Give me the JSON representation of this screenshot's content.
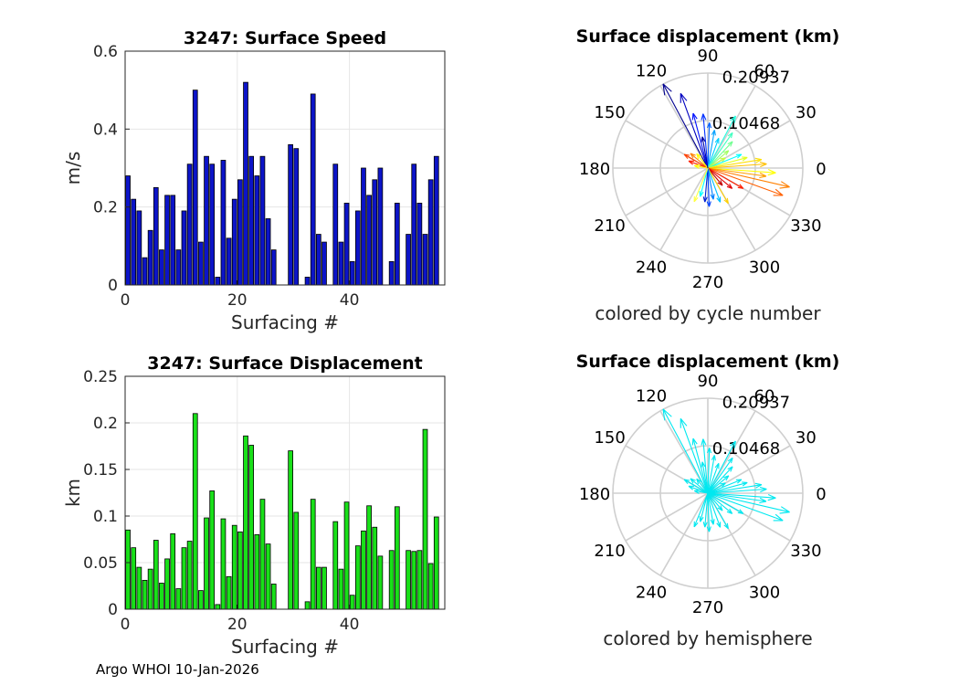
{
  "footer": "Argo WHOI 10-Jan-2026",
  "chart_data": [
    {
      "type": "bar",
      "title": "3247: Surface Speed",
      "xlabel": "Surfacing #",
      "ylabel": "m/s",
      "xlim": [
        0,
        57
      ],
      "ylim": [
        0,
        0.6
      ],
      "xticks": [
        0,
        20,
        40
      ],
      "yticks": [
        0,
        0.2,
        0.4,
        0.6
      ],
      "ytick_labels": [
        "0",
        "0.2",
        "0.4",
        "0.6"
      ],
      "grid": true,
      "bar_color": "#0c14c8",
      "x": [
        0,
        1,
        2,
        3,
        4,
        5,
        6,
        7,
        8,
        9,
        10,
        11,
        12,
        13,
        14,
        15,
        16,
        17,
        18,
        19,
        20,
        21,
        22,
        23,
        24,
        25,
        26,
        29,
        30,
        32,
        33,
        34,
        35,
        37,
        38,
        39,
        40,
        41,
        42,
        43,
        44,
        45,
        47,
        48,
        50,
        51,
        52,
        53,
        54,
        55
      ],
      "values": [
        0.28,
        0.22,
        0.19,
        0.07,
        0.14,
        0.25,
        0.09,
        0.23,
        0.23,
        0.09,
        0.19,
        0.31,
        0.5,
        0.11,
        0.33,
        0.31,
        0.02,
        0.32,
        0.12,
        0.22,
        0.27,
        0.52,
        0.33,
        0.28,
        0.33,
        0.17,
        0.09,
        0.36,
        0.35,
        0.02,
        0.49,
        0.13,
        0.11,
        0.31,
        0.11,
        0.21,
        0.06,
        0.19,
        0.3,
        0.23,
        0.27,
        0.3,
        0.06,
        0.21,
        0.13,
        0.31,
        0.21,
        0.13,
        0.27,
        0.33
      ]
    },
    {
      "type": "bar",
      "title": "3247: Surface Displacement",
      "xlabel": "Surfacing #",
      "ylabel": "km",
      "xlim": [
        0,
        57
      ],
      "ylim": [
        0,
        0.25
      ],
      "xticks": [
        0,
        20,
        40
      ],
      "yticks": [
        0,
        0.05,
        0.1,
        0.15,
        0.2,
        0.25
      ],
      "ytick_labels": [
        "0",
        "0.05",
        "0.1",
        "0.15",
        "0.2",
        "0.25"
      ],
      "grid": true,
      "bar_color": "#19e019",
      "x": [
        0,
        1,
        2,
        3,
        4,
        5,
        6,
        7,
        8,
        9,
        10,
        11,
        12,
        13,
        14,
        15,
        16,
        17,
        18,
        19,
        20,
        21,
        22,
        23,
        24,
        25,
        26,
        29,
        30,
        32,
        33,
        34,
        35,
        37,
        38,
        39,
        40,
        41,
        42,
        43,
        44,
        45,
        47,
        48,
        50,
        51,
        52,
        53,
        54,
        55
      ],
      "values": [
        0.085,
        0.066,
        0.045,
        0.031,
        0.043,
        0.074,
        0.028,
        0.054,
        0.081,
        0.022,
        0.066,
        0.073,
        0.21,
        0.02,
        0.098,
        0.127,
        0.005,
        0.097,
        0.035,
        0.09,
        0.083,
        0.186,
        0.176,
        0.08,
        0.118,
        0.07,
        0.027,
        0.17,
        0.104,
        0.008,
        0.118,
        0.045,
        0.045,
        0.094,
        0.043,
        0.115,
        0.015,
        0.068,
        0.084,
        0.111,
        0.088,
        0.057,
        0.063,
        0.11,
        0.063,
        0.062,
        0.063,
        0.193,
        0.049,
        0.099
      ]
    },
    {
      "type": "compass",
      "title": "Surface displacement (km)",
      "xlabel": "colored by cycle number",
      "radial_ticks": [
        0.10468,
        0.20937
      ],
      "radial_tick_labels": [
        "0.10468",
        "0.20937"
      ],
      "angle_labels": [
        "0",
        "30",
        "60",
        "90",
        "120",
        "150",
        "180",
        "210",
        "240",
        "270",
        "300",
        "330"
      ],
      "angle_unit": "degrees",
      "arrows_deg_km": [
        [
          118,
          0.21,
          "#00008f"
        ],
        [
          110,
          0.175,
          "#0000c0"
        ],
        [
          105,
          0.125,
          "#0010ff"
        ],
        [
          95,
          0.12,
          "#0030ff"
        ],
        [
          88,
          0.1,
          "#0060ff"
        ],
        [
          80,
          0.085,
          "#00a0ff"
        ],
        [
          70,
          0.07,
          "#00d0ff"
        ],
        [
          62,
          0.13,
          "#20ffe0"
        ],
        [
          55,
          0.095,
          "#40ffc0"
        ],
        [
          47,
          0.08,
          "#70ff90"
        ],
        [
          40,
          0.06,
          "#a0ff60"
        ],
        [
          30,
          0.045,
          "#c0ff40"
        ],
        [
          22,
          0.08,
          "#00ffff"
        ],
        [
          15,
          0.09,
          "#e0ff20"
        ],
        [
          9,
          0.12,
          "#ffe000"
        ],
        [
          4,
          0.13,
          "#ffc000"
        ],
        [
          -4,
          0.15,
          "#ffff00"
        ],
        [
          -8,
          0.13,
          "#ffa000"
        ],
        [
          -13,
          0.185,
          "#ff8000"
        ],
        [
          -20,
          0.176,
          "#ff6000"
        ],
        [
          -30,
          0.09,
          "#ff2000"
        ],
        [
          -40,
          0.07,
          "#e00000"
        ],
        [
          -50,
          0.05,
          "#c00000"
        ],
        [
          -60,
          0.09,
          "#ffd000"
        ],
        [
          -70,
          0.08,
          "#00c0ff"
        ],
        [
          -80,
          0.07,
          "#0080ff"
        ],
        [
          -88,
          0.085,
          "#0040ff"
        ],
        [
          -95,
          0.075,
          "#0020d0"
        ],
        [
          -105,
          0.065,
          "#00ffff"
        ],
        [
          -112,
          0.08,
          "#ffff40"
        ],
        [
          150,
          0.06,
          "#ff4000"
        ],
        [
          160,
          0.045,
          "#ff2000"
        ],
        [
          170,
          0.03,
          "#ffff00"
        ],
        [
          140,
          0.05,
          "#ff8000"
        ],
        [
          128,
          0.04,
          "#ffff00"
        ],
        [
          100,
          0.07,
          "#0000a0"
        ]
      ]
    },
    {
      "type": "compass",
      "title": "Surface displacement (km)",
      "xlabel": "colored by hemisphere",
      "radial_ticks": [
        0.10468,
        0.20937
      ],
      "radial_tick_labels": [
        "0.10468",
        "0.20937"
      ],
      "angle_labels": [
        "0",
        "30",
        "60",
        "90",
        "120",
        "150",
        "180",
        "210",
        "240",
        "270",
        "300",
        "330"
      ],
      "angle_unit": "degrees",
      "arrow_color": "#00e8f0",
      "arrows_deg_km": [
        [
          118,
          0.21
        ],
        [
          110,
          0.175
        ],
        [
          105,
          0.125
        ],
        [
          95,
          0.12
        ],
        [
          88,
          0.1
        ],
        [
          80,
          0.085
        ],
        [
          70,
          0.07
        ],
        [
          62,
          0.13
        ],
        [
          55,
          0.095
        ],
        [
          47,
          0.08
        ],
        [
          40,
          0.06
        ],
        [
          30,
          0.045
        ],
        [
          22,
          0.08
        ],
        [
          15,
          0.09
        ],
        [
          9,
          0.12
        ],
        [
          4,
          0.13
        ],
        [
          -4,
          0.15
        ],
        [
          -8,
          0.13
        ],
        [
          -13,
          0.185
        ],
        [
          -20,
          0.176
        ],
        [
          -30,
          0.09
        ],
        [
          -40,
          0.07
        ],
        [
          -50,
          0.05
        ],
        [
          -60,
          0.09
        ],
        [
          -70,
          0.08
        ],
        [
          -80,
          0.07
        ],
        [
          -88,
          0.085
        ],
        [
          -95,
          0.075
        ],
        [
          -105,
          0.065
        ],
        [
          -112,
          0.08
        ],
        [
          150,
          0.06
        ],
        [
          160,
          0.045
        ],
        [
          170,
          0.03
        ],
        [
          140,
          0.05
        ],
        [
          128,
          0.04
        ],
        [
          100,
          0.07
        ]
      ]
    }
  ]
}
